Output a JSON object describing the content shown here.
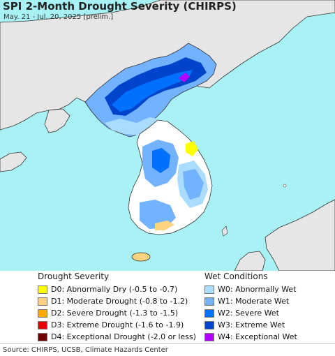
{
  "title": "SPI 2-Month Drought Severity (CHIRPS)",
  "subtitle": "May. 21 - Jul. 20, 2025 [prelim.]",
  "colors": {
    "water": "#a8f2f6",
    "land_outside": "#e6e6e6",
    "land_normal": "#ffffff",
    "border": "#333333"
  },
  "legend": {
    "drought": {
      "heading": "Drought Severity",
      "items": [
        {
          "label": "D0: Abnormally Dry (-0.5 to -0.7)",
          "color": "#ffff00"
        },
        {
          "label": "D1: Moderate Drought (-0.8 to -1.2)",
          "color": "#fcd37f"
        },
        {
          "label": "D2: Severe Drought (-1.3 to -1.5)",
          "color": "#ffaa00"
        },
        {
          "label": "D3: Extreme Drought (-1.6 to -1.9)",
          "color": "#e60000"
        },
        {
          "label": "D4: Exceptional Drought (-2.0 or less)",
          "color": "#730000"
        }
      ]
    },
    "wet": {
      "heading": "Wet Conditions",
      "items": [
        {
          "label": "W0: Abnormally Wet",
          "color": "#aadcff"
        },
        {
          "label": "W1: Moderate Wet",
          "color": "#73b2ff"
        },
        {
          "label": "W2: Severe Wet",
          "color": "#0070ff"
        },
        {
          "label": "W3: Extreme Wet",
          "color": "#0044cc"
        },
        {
          "label": "W4: Exceptional Wet",
          "color": "#b400ff"
        }
      ]
    }
  },
  "source": "Source: CHIRPS, UCSB, Climate Hazards Center"
}
